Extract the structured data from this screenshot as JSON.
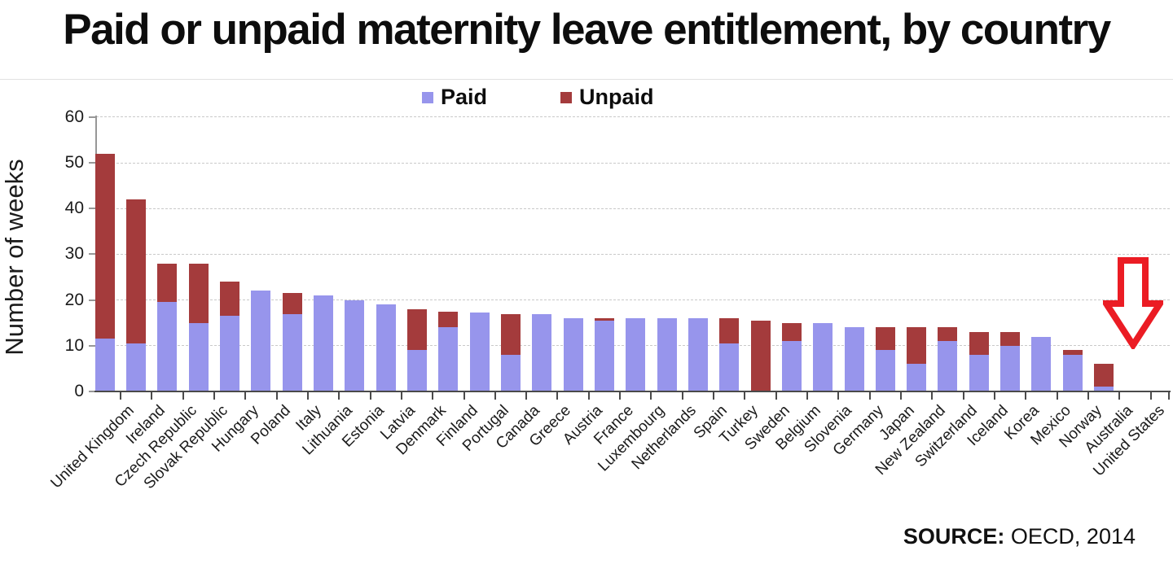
{
  "title": "Paid or unpaid maternity leave entitlement, by country",
  "legend": {
    "paid_label": "Paid",
    "unpaid_label": "Unpaid"
  },
  "y_axis_title": "Number of weeks",
  "source": {
    "label": "SOURCE:",
    "value": "OECD, 2014"
  },
  "colors": {
    "paid": "#9795EC",
    "unpaid": "#A43B3C",
    "arrow": "#EB1C24",
    "gridline": "#C9C9C9"
  },
  "chart_data": {
    "type": "bar",
    "stacked": true,
    "title": "Paid or unpaid maternity leave entitlement, by country",
    "xlabel": "",
    "ylabel": "Number of weeks",
    "ylim": [
      0,
      60
    ],
    "yticks": [
      0,
      10,
      20,
      30,
      40,
      50,
      60
    ],
    "grid": "horizontal-dashed",
    "legend_position": "top-center",
    "categories": [
      "United Kingdom",
      "Ireland",
      "Czech Republic",
      "Slovak Republic",
      "Hungary",
      "Poland",
      "Italy",
      "Lithuania",
      "Estonia",
      "Latvia",
      "Denmark",
      "Finland",
      "Portugal",
      "Canada",
      "Greece",
      "Austria",
      "France",
      "Luxembourg",
      "Netherlands",
      "Spain",
      "Turkey",
      "Sweden",
      "Belgium",
      "Slovenia",
      "Germany",
      "Japan",
      "New Zealand",
      "Switzerland",
      "Iceland",
      "Korea",
      "Mexico",
      "Norway",
      "Australia",
      "United States"
    ],
    "series": [
      {
        "name": "Paid",
        "color": "#9795EC",
        "values": [
          11.5,
          10.5,
          19.5,
          15,
          16.5,
          22,
          17,
          21,
          20,
          19,
          9,
          14,
          17.3,
          8,
          17,
          16,
          15.5,
          16,
          16,
          16,
          10.5,
          0,
          11,
          15,
          14,
          9,
          6,
          11,
          8,
          10,
          12,
          8,
          1,
          0
        ]
      },
      {
        "name": "Unpaid",
        "color": "#A43B3C",
        "values": [
          40.5,
          31.5,
          8.5,
          13,
          7.5,
          0,
          4.5,
          0,
          0,
          0,
          9,
          3.5,
          0,
          9,
          0,
          0,
          0.5,
          0,
          0,
          0,
          5.5,
          15.5,
          4,
          0,
          0,
          5,
          8,
          3,
          5,
          3,
          0,
          1,
          5,
          0
        ]
      }
    ],
    "annotation": {
      "type": "down-arrow",
      "target": "United States",
      "color": "#EB1C24"
    }
  }
}
